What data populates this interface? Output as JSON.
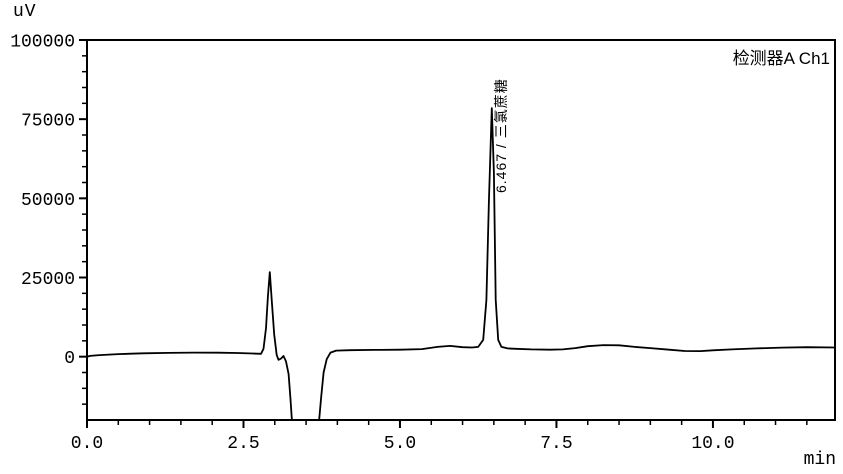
{
  "page": {
    "background": "#ffffff",
    "foreground": "#000000"
  },
  "chart_data": {
    "type": "line",
    "title": "",
    "detector_label": "检测器A Ch1",
    "ylabel": "uV",
    "xlabel": "min",
    "xlim": [
      0,
      11.95
    ],
    "ylim": [
      -20000,
      100000
    ],
    "x_major_ticks": [
      0,
      2.5,
      5,
      7.5,
      10
    ],
    "x_major_tick_labels": [
      "0.0",
      "2.5",
      "5.0",
      "7.5",
      "10.0"
    ],
    "x_minor_tick_step": 0.5,
    "y_major_ticks": [
      0,
      25000,
      50000,
      75000,
      100000
    ],
    "y_major_tick_labels": [
      "0",
      "25000",
      "50000",
      "75000",
      "100000"
    ],
    "y_minor_tick_step": 5000,
    "grid": false,
    "legend_position": "none",
    "line_color": "#000000",
    "annotations": [
      {
        "text": "6.467 / 三氯蔗糖",
        "retention_time_min": 6.467,
        "peak_name": "三氯蔗糖",
        "peak_height_uV": 78500,
        "orientation": "vertical"
      }
    ],
    "peaks": [
      {
        "retention_time_min": 2.92,
        "height_uV": 26700,
        "label": ""
      },
      {
        "retention_time_min": 6.467,
        "height_uV": 78500,
        "label": "三氯蔗糖"
      }
    ],
    "series": [
      {
        "name": "检测器A Ch1",
        "points": [
          [
            0.0,
            0
          ],
          [
            0.05,
            250
          ],
          [
            0.2,
            500
          ],
          [
            0.5,
            800
          ],
          [
            0.9,
            1050
          ],
          [
            1.3,
            1200
          ],
          [
            1.7,
            1300
          ],
          [
            2.1,
            1250
          ],
          [
            2.4,
            1150
          ],
          [
            2.65,
            1000
          ],
          [
            2.78,
            900
          ],
          [
            2.82,
            2500
          ],
          [
            2.86,
            9000
          ],
          [
            2.89,
            19000
          ],
          [
            2.92,
            26700
          ],
          [
            2.95,
            18000
          ],
          [
            2.99,
            7000
          ],
          [
            3.03,
            500
          ],
          [
            3.06,
            -1000
          ],
          [
            3.1,
            -600
          ],
          [
            3.14,
            200
          ],
          [
            3.18,
            -1500
          ],
          [
            3.22,
            -5500
          ],
          [
            3.25,
            -13000
          ],
          [
            3.28,
            -22000
          ],
          [
            3.7,
            -22000
          ],
          [
            3.74,
            -13000
          ],
          [
            3.78,
            -5000
          ],
          [
            3.83,
            -800
          ],
          [
            3.89,
            1300
          ],
          [
            3.98,
            1900
          ],
          [
            4.2,
            2050
          ],
          [
            4.6,
            2150
          ],
          [
            5.0,
            2200
          ],
          [
            5.35,
            2400
          ],
          [
            5.6,
            3100
          ],
          [
            5.8,
            3400
          ],
          [
            6.0,
            3000
          ],
          [
            6.15,
            2900
          ],
          [
            6.25,
            3100
          ],
          [
            6.33,
            5300
          ],
          [
            6.38,
            17900
          ],
          [
            6.42,
            49000
          ],
          [
            6.467,
            78500
          ],
          [
            6.5,
            58000
          ],
          [
            6.53,
            18000
          ],
          [
            6.57,
            5300
          ],
          [
            6.62,
            3100
          ],
          [
            6.72,
            2600
          ],
          [
            6.85,
            2500
          ],
          [
            7.1,
            2300
          ],
          [
            7.4,
            2200
          ],
          [
            7.6,
            2300
          ],
          [
            7.8,
            2700
          ],
          [
            8.0,
            3300
          ],
          [
            8.25,
            3650
          ],
          [
            8.5,
            3600
          ],
          [
            8.75,
            3100
          ],
          [
            9.0,
            2700
          ],
          [
            9.3,
            2200
          ],
          [
            9.55,
            1800
          ],
          [
            9.8,
            1750
          ],
          [
            10.0,
            2000
          ],
          [
            10.3,
            2300
          ],
          [
            10.7,
            2600
          ],
          [
            11.1,
            2850
          ],
          [
            11.5,
            3000
          ],
          [
            11.95,
            2900
          ]
        ]
      }
    ]
  }
}
